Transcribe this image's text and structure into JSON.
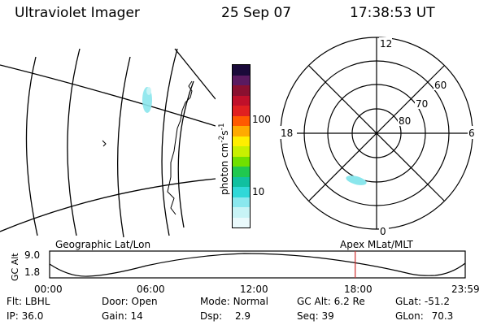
{
  "header": {
    "instrument": "Ultraviolet Imager",
    "date": "25 Sep 07",
    "time": "17:38:53 UT"
  },
  "colorbar": {
    "unit_label": "photon cm",
    "unit_exp1": "-2",
    "unit_mid": "s",
    "unit_exp2": "-1",
    "ticks": [
      "100",
      "10"
    ],
    "colors": [
      "#1a0a3a",
      "#5a1a60",
      "#8a1030",
      "#c0102a",
      "#e02020",
      "#ff5a00",
      "#ffaa00",
      "#ffee00",
      "#c8f000",
      "#70e000",
      "#20c850",
      "#10c0a0",
      "#30d8d8",
      "#8ae8ee",
      "#c8f4f6",
      "#eafafc"
    ]
  },
  "map": {
    "label": "Geographic Lat/Lon"
  },
  "polar": {
    "label": "Apex MLat/MLT",
    "mlt_labels": {
      "top": "12",
      "left": "18",
      "right": "6",
      "bottom": "0"
    },
    "mlat_labels": [
      "60",
      "70",
      "80"
    ]
  },
  "orbit": {
    "axis_label": "GC Alt",
    "y_ticks": [
      "9.0",
      "1.8"
    ],
    "x_ticks": [
      "00:00",
      "06:00",
      "12:00",
      "18:00",
      "23:59"
    ],
    "marker_time_fraction": 0.7353,
    "marker_color": "#d03030"
  },
  "info": {
    "row1": [
      {
        "key": "Flt:",
        "val": "LBHL"
      },
      {
        "key": "Door:",
        "val": "Open"
      },
      {
        "key": "Mode:",
        "val": "Normal"
      },
      {
        "key": "GC Alt:",
        "val": "6.2 Re"
      },
      {
        "key": "GLat:",
        "val": "-51.2"
      }
    ],
    "row2": [
      {
        "key": "IP:",
        "val": "36.0"
      },
      {
        "key": "Gain:",
        "val": "14"
      },
      {
        "key": "Dsp:",
        "val": "2.9"
      },
      {
        "key": "Seq:",
        "val": "39"
      },
      {
        "key": "GLon:",
        "val": "70.3"
      }
    ]
  }
}
